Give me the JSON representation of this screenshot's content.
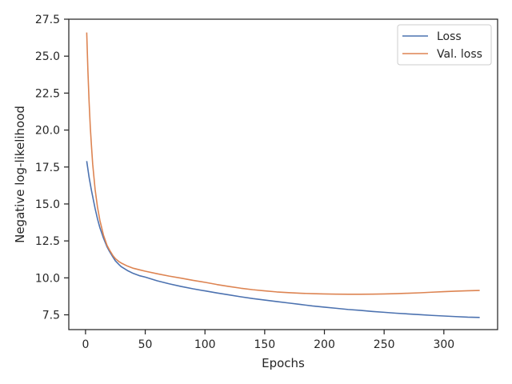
{
  "chart_data": {
    "type": "line",
    "title": "",
    "xlabel": "Epochs",
    "ylabel": "Negative log-likelihood",
    "xlim": [
      -14,
      345
    ],
    "ylim": [
      6.5,
      27.5
    ],
    "xticks": [
      0,
      50,
      100,
      150,
      200,
      250,
      300
    ],
    "xtick_labels": [
      "0",
      "50",
      "100",
      "150",
      "200",
      "250",
      "300"
    ],
    "yticks": [
      7.5,
      10.0,
      12.5,
      15.0,
      17.5,
      20.0,
      22.5,
      25.0,
      27.5
    ],
    "ytick_labels": [
      "7.5",
      "10.0",
      "12.5",
      "15.0",
      "17.5",
      "20.0",
      "22.5",
      "25.0",
      "27.5"
    ],
    "grid": false,
    "legend_position": "top-right",
    "series": [
      {
        "name": "Loss",
        "color": "#4c72b0",
        "x": [
          1,
          3,
          5,
          8,
          10,
          12,
          15,
          18,
          20,
          23,
          25,
          28,
          30,
          35,
          40,
          45,
          50,
          60,
          70,
          80,
          90,
          100,
          110,
          120,
          130,
          140,
          150,
          160,
          170,
          180,
          190,
          200,
          210,
          220,
          230,
          240,
          250,
          260,
          270,
          280,
          290,
          300,
          310,
          320,
          330
        ],
        "y": [
          17.9,
          16.8,
          15.9,
          14.7,
          14.0,
          13.4,
          12.7,
          12.1,
          11.8,
          11.4,
          11.15,
          10.9,
          10.75,
          10.5,
          10.3,
          10.15,
          10.05,
          9.8,
          9.6,
          9.42,
          9.26,
          9.12,
          8.98,
          8.85,
          8.72,
          8.6,
          8.5,
          8.4,
          8.3,
          8.2,
          8.1,
          8.02,
          7.94,
          7.86,
          7.8,
          7.73,
          7.67,
          7.61,
          7.56,
          7.51,
          7.46,
          7.42,
          7.38,
          7.34,
          7.32
        ]
      },
      {
        "name": "Val. loss",
        "color": "#dd8452",
        "x": [
          1,
          2,
          3,
          4,
          5,
          6,
          8,
          10,
          12,
          15,
          18,
          20,
          23,
          25,
          28,
          30,
          35,
          40,
          45,
          50,
          60,
          70,
          80,
          90,
          100,
          110,
          120,
          130,
          140,
          150,
          160,
          170,
          180,
          190,
          200,
          210,
          220,
          230,
          240,
          250,
          260,
          270,
          280,
          290,
          300,
          310,
          320,
          330
        ],
        "y": [
          26.6,
          24.0,
          21.9,
          20.2,
          18.9,
          17.7,
          16.0,
          14.8,
          13.9,
          12.9,
          12.2,
          11.9,
          11.5,
          11.3,
          11.1,
          11.0,
          10.8,
          10.65,
          10.55,
          10.45,
          10.28,
          10.12,
          9.98,
          9.83,
          9.7,
          9.55,
          9.42,
          9.3,
          9.2,
          9.12,
          9.05,
          9.0,
          8.96,
          8.93,
          8.91,
          8.9,
          8.89,
          8.89,
          8.9,
          8.91,
          8.93,
          8.96,
          8.99,
          9.03,
          9.07,
          9.1,
          9.13,
          9.15
        ]
      }
    ]
  }
}
